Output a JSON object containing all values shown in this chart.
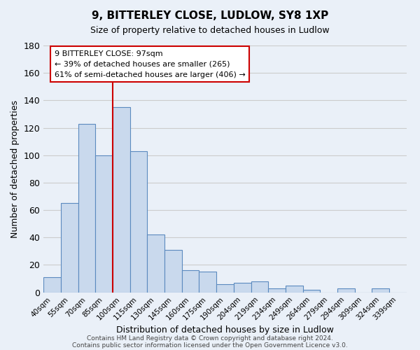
{
  "title": "9, BITTERLEY CLOSE, LUDLOW, SY8 1XP",
  "subtitle": "Size of property relative to detached houses in Ludlow",
  "xlabel": "Distribution of detached houses by size in Ludlow",
  "ylabel": "Number of detached properties",
  "bar_labels": [
    "40sqm",
    "55sqm",
    "70sqm",
    "85sqm",
    "100sqm",
    "115sqm",
    "130sqm",
    "145sqm",
    "160sqm",
    "175sqm",
    "190sqm",
    "204sqm",
    "219sqm",
    "234sqm",
    "249sqm",
    "264sqm",
    "279sqm",
    "294sqm",
    "309sqm",
    "324sqm",
    "339sqm"
  ],
  "bar_values": [
    11,
    65,
    123,
    100,
    135,
    103,
    42,
    31,
    16,
    15,
    6,
    7,
    8,
    3,
    5,
    2,
    0,
    3,
    0,
    3,
    0
  ],
  "bar_color": "#c9d9ed",
  "bar_edge_color": "#5b8abf",
  "ylim": [
    0,
    180
  ],
  "yticks": [
    0,
    20,
    40,
    60,
    80,
    100,
    120,
    140,
    160,
    180
  ],
  "grid_color": "#cccccc",
  "bg_color": "#eaf0f8",
  "vline_x_index": 4,
  "vline_color": "#cc0000",
  "annotation_title": "9 BITTERLEY CLOSE: 97sqm",
  "annotation_line1": "← 39% of detached houses are smaller (265)",
  "annotation_line2": "61% of semi-detached houses are larger (406) →",
  "annotation_box_color": "#ffffff",
  "annotation_box_edge": "#cc0000",
  "footer1": "Contains HM Land Registry data © Crown copyright and database right 2024.",
  "footer2": "Contains public sector information licensed under the Open Government Licence v3.0."
}
